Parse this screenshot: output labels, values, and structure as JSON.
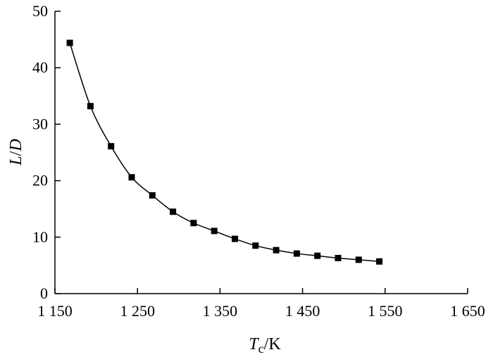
{
  "chart_data": {
    "type": "scatter",
    "title": "",
    "xlabel": "T_c/K",
    "ylabel": "L/D",
    "xlim": [
      1150,
      1650
    ],
    "ylim": [
      0,
      50
    ],
    "x_ticks": [
      1150,
      1250,
      1350,
      1450,
      1550,
      1650
    ],
    "x_tick_labels": [
      "1 150",
      "1 250",
      "1 350",
      "1 450",
      "1 550",
      "1 650"
    ],
    "y_ticks": [
      0,
      10,
      20,
      30,
      40,
      50
    ],
    "y_tick_labels": [
      "0",
      "10",
      "20",
      "30",
      "40",
      "50"
    ],
    "grid": false,
    "legend": "none",
    "marker": "square",
    "series": [
      {
        "x": [
          1168,
          1193,
          1218,
          1243,
          1268,
          1293,
          1318,
          1343,
          1368,
          1393,
          1418,
          1443,
          1468,
          1493,
          1518,
          1543
        ],
        "y": [
          44.4,
          33.2,
          26.1,
          20.6,
          17.4,
          14.5,
          12.5,
          11.1,
          9.7,
          8.5,
          7.7,
          7.1,
          6.7,
          6.3,
          6.0,
          5.7
        ],
        "fit_line": true
      }
    ],
    "colors": {
      "marker": "#000000",
      "line": "#000000",
      "axis": "#000000"
    }
  },
  "xlabel_parts": {
    "main": "T",
    "sub": "c",
    "rest": "/K"
  },
  "ylabel_parts": {
    "a": "L",
    "sep": "/",
    "b": "D"
  }
}
